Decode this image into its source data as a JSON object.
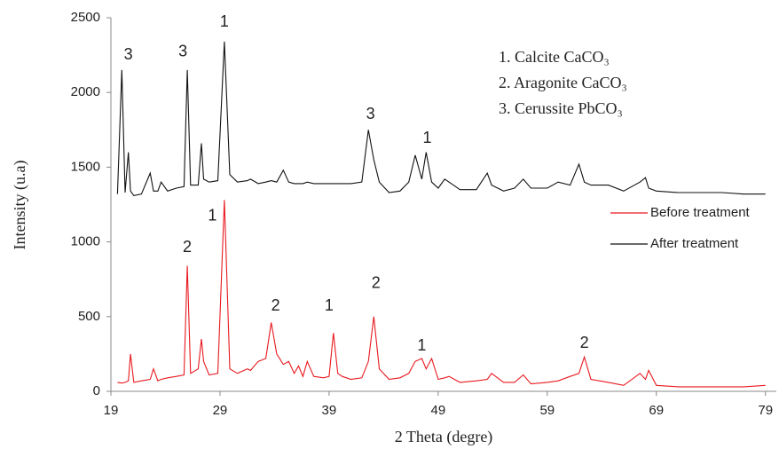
{
  "chart_data": {
    "type": "line",
    "x_label": "2 Theta (degre)",
    "y_label": "Intensity (u.a)",
    "xlim": [
      19,
      80
    ],
    "xticks": [
      19,
      29,
      39,
      49,
      59,
      69,
      79
    ],
    "ylim": [
      0,
      2500
    ],
    "yticks": [
      0,
      500,
      1000,
      1500,
      2000,
      2500
    ],
    "grid": false,
    "legend_position": "right",
    "x": [
      19.6,
      20.0,
      20.3,
      20.6,
      20.8,
      21.1,
      21.8,
      22.6,
      22.9,
      23.3,
      23.6,
      24.2,
      25.0,
      25.7,
      26.0,
      26.3,
      27.0,
      27.3,
      27.5,
      28.0,
      28.8,
      29.4,
      29.9,
      30.6,
      31.5,
      31.8,
      32.5,
      33.2,
      33.7,
      34.2,
      34.8,
      35.3,
      35.8,
      36.2,
      36.6,
      37.0,
      37.6,
      38.5,
      39.0,
      39.4,
      39.8,
      40.2,
      41.0,
      42.0,
      42.6,
      43.1,
      43.6,
      44.5,
      45.5,
      46.3,
      46.9,
      47.5,
      47.9,
      48.4,
      49.0,
      49.6,
      50.0,
      51.0,
      52.5,
      53.5,
      53.9,
      55.0,
      56.0,
      56.8,
      57.5,
      59.0,
      60.0,
      61.1,
      61.9,
      62.4,
      63.0,
      64.6,
      66.0,
      67.5,
      68.0,
      68.3,
      69.0,
      71.0,
      73.0,
      75.0,
      77.0,
      79.0
    ],
    "series": [
      {
        "name": "Before treatment",
        "color": "#e8191f",
        "values": [
          60,
          55,
          60,
          70,
          250,
          60,
          70,
          80,
          150,
          70,
          80,
          90,
          100,
          110,
          840,
          120,
          150,
          350,
          200,
          110,
          120,
          1280,
          150,
          120,
          150,
          140,
          200,
          220,
          460,
          250,
          180,
          200,
          120,
          170,
          100,
          200,
          100,
          90,
          100,
          390,
          120,
          100,
          80,
          90,
          200,
          500,
          150,
          80,
          90,
          120,
          200,
          220,
          150,
          220,
          80,
          90,
          100,
          60,
          70,
          80,
          120,
          60,
          60,
          110,
          50,
          60,
          70,
          100,
          120,
          230,
          80,
          60,
          40,
          120,
          80,
          140,
          40,
          30,
          30,
          30,
          30,
          40
        ]
      },
      {
        "name": "After treatment",
        "color": "#111111",
        "values": [
          1320,
          2150,
          1330,
          1600,
          1340,
          1310,
          1320,
          1460,
          1340,
          1340,
          1400,
          1340,
          1360,
          1370,
          2150,
          1380,
          1380,
          1660,
          1420,
          1400,
          1410,
          2340,
          1450,
          1400,
          1410,
          1420,
          1390,
          1400,
          1410,
          1400,
          1480,
          1400,
          1390,
          1390,
          1390,
          1400,
          1390,
          1390,
          1390,
          1390,
          1390,
          1390,
          1390,
          1400,
          1750,
          1550,
          1400,
          1330,
          1340,
          1400,
          1580,
          1420,
          1600,
          1400,
          1360,
          1420,
          1400,
          1350,
          1350,
          1460,
          1380,
          1340,
          1360,
          1420,
          1360,
          1360,
          1400,
          1380,
          1520,
          1400,
          1380,
          1380,
          1340,
          1400,
          1430,
          1360,
          1340,
          1330,
          1330,
          1330,
          1320,
          1320
        ]
      }
    ],
    "annotations": [
      {
        "text": "3",
        "x": 20.6,
        "y": 2250
      },
      {
        "text": "3",
        "x": 25.6,
        "y": 2270
      },
      {
        "text": "1",
        "x": 29.4,
        "y": 2470
      },
      {
        "text": "3",
        "x": 42.8,
        "y": 1850
      },
      {
        "text": "1",
        "x": 48.0,
        "y": 1690
      },
      {
        "text": "2",
        "x": 26.0,
        "y": 960
      },
      {
        "text": "1",
        "x": 28.3,
        "y": 1170
      },
      {
        "text": "2",
        "x": 34.1,
        "y": 570
      },
      {
        "text": "1",
        "x": 39.0,
        "y": 570
      },
      {
        "text": "2",
        "x": 43.3,
        "y": 720
      },
      {
        "text": "1",
        "x": 47.5,
        "y": 300
      },
      {
        "text": "2",
        "x": 62.4,
        "y": 320
      }
    ],
    "compound_key": [
      "1. Calcite CaCO₃",
      "2. Aragonite CaCO₃",
      "3. Cerussite PbCO₃"
    ]
  }
}
